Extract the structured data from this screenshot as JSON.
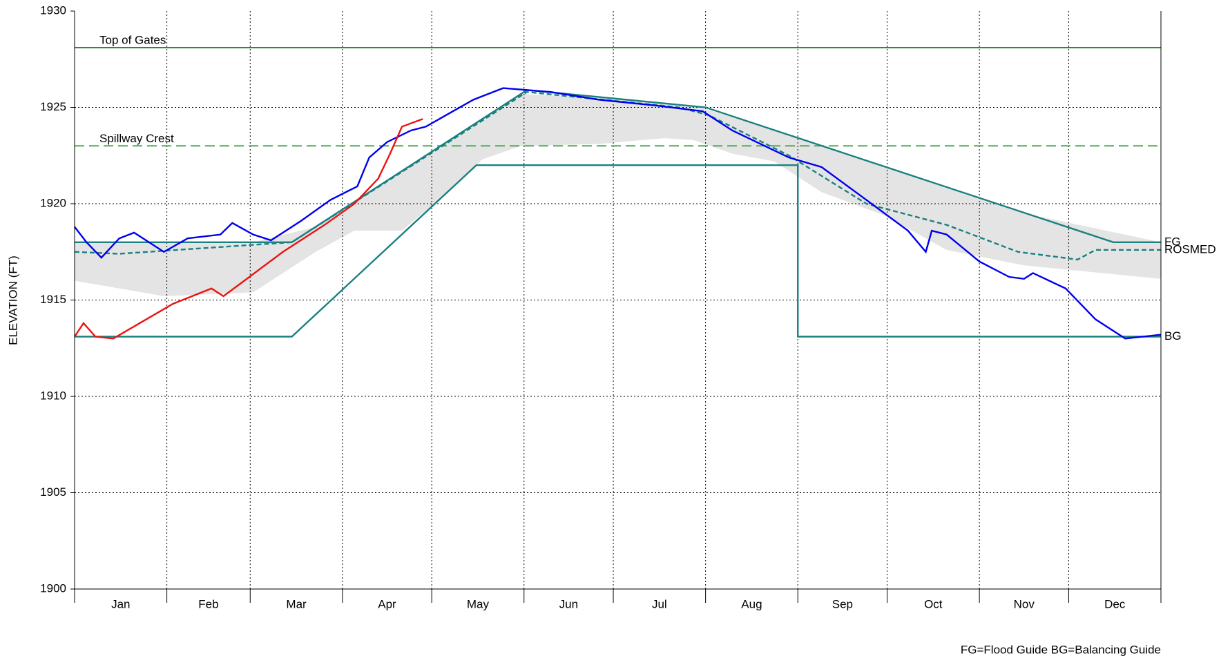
{
  "chart_data": {
    "type": "line",
    "y_label": "ELEVATION (FT)",
    "note": "FG=Flood Guide  BG=Balancing Guide",
    "xlim": [
      0,
      365
    ],
    "xticks": [
      {
        "value": 0,
        "label": "Jan"
      },
      {
        "value": 31,
        "label": "Feb"
      },
      {
        "value": 59,
        "label": "Mar"
      },
      {
        "value": 90,
        "label": "Apr"
      },
      {
        "value": 120,
        "label": "May"
      },
      {
        "value": 151,
        "label": "Jun"
      },
      {
        "value": 181,
        "label": "Jul"
      },
      {
        "value": 212,
        "label": "Aug"
      },
      {
        "value": 243,
        "label": "Sep"
      },
      {
        "value": 273,
        "label": "Oct"
      },
      {
        "value": 304,
        "label": "Nov"
      },
      {
        "value": 334,
        "label": "Dec"
      }
    ],
    "ylim": [
      1900,
      1930
    ],
    "yticks": [
      1900,
      1905,
      1910,
      1915,
      1920,
      1925,
      1930
    ],
    "grid": true,
    "reference_lines": [
      {
        "name": "Top of Gates",
        "value": 1928.1,
        "color": "#2e8b2e",
        "dash": false
      },
      {
        "name": "Spillway Crest",
        "value": 1923.0,
        "color": "#4caf50",
        "dash": true
      }
    ],
    "band": {
      "color": "#e4e4e4",
      "x": [
        0,
        30,
        60,
        81,
        94,
        110,
        123,
        137,
        150,
        176,
        198,
        208,
        221,
        235,
        251,
        272,
        293,
        319,
        365
      ],
      "lower": [
        1916.0,
        1915.2,
        1915.4,
        1917.5,
        1918.6,
        1918.6,
        1920.3,
        1922.3,
        1923.0,
        1923.1,
        1923.4,
        1923.3,
        1922.6,
        1922.2,
        1920.6,
        1919.4,
        1917.6,
        1916.8,
        1916.1
      ],
      "upper": [
        1918.0,
        1918.0,
        1918.0,
        1918.8,
        1920.1,
        1921.7,
        1923.0,
        1924.4,
        1925.7,
        1925.5,
        1925.2,
        1925.1,
        1924.5,
        1923.8,
        1923.0,
        1921.9,
        1920.8,
        1919.5,
        1918.0
      ]
    },
    "series": [
      {
        "name": "FG",
        "color": "#1a8080",
        "dash": false,
        "x": [
          0,
          73,
          152,
          212,
          349,
          365
        ],
        "values": [
          1918.0,
          1918.0,
          1925.9,
          1925.0,
          1918.0,
          1918.0
        ]
      },
      {
        "name": "ROSMED",
        "color": "#1a8080",
        "dash": true,
        "x": [
          0,
          15,
          73,
          152,
          203,
          213,
          240,
          266,
          293,
          317,
          337,
          343,
          365
        ],
        "values": [
          1917.5,
          1917.4,
          1918.0,
          1925.8,
          1925.0,
          1924.6,
          1922.5,
          1920.0,
          1918.9,
          1917.5,
          1917.1,
          1917.6,
          1917.6
        ]
      },
      {
        "name": "BG",
        "color": "#1a8080",
        "dash": false,
        "x": [
          0,
          73,
          135,
          243,
          243,
          365
        ],
        "values": [
          1913.1,
          1913.1,
          1922.0,
          1922.0,
          1913.1,
          1913.1
        ]
      },
      {
        "color": "#0000ee",
        "dash": false,
        "x": [
          0,
          4,
          9,
          15,
          20,
          30,
          38,
          49,
          53,
          60,
          66,
          76,
          86,
          95,
          99,
          105,
          113,
          118,
          134,
          144,
          160,
          176,
          195,
          211,
          221,
          240,
          251,
          266,
          280,
          286,
          288,
          293,
          304,
          314,
          319,
          322,
          333,
          343,
          353,
          365
        ],
        "values": [
          1918.8,
          1918.0,
          1917.2,
          1918.2,
          1918.5,
          1917.5,
          1918.2,
          1918.4,
          1919.0,
          1918.4,
          1918.1,
          1919.1,
          1920.2,
          1920.9,
          1922.4,
          1923.2,
          1923.8,
          1924.0,
          1925.4,
          1926.0,
          1925.8,
          1925.4,
          1925.1,
          1924.8,
          1923.8,
          1922.4,
          1921.9,
          1920.2,
          1918.6,
          1917.5,
          1918.6,
          1918.4,
          1917.0,
          1916.2,
          1916.1,
          1916.4,
          1915.6,
          1914.0,
          1913.0,
          1913.2
        ]
      },
      {
        "color": "#ee1111",
        "dash": false,
        "x": [
          0,
          3,
          7,
          13,
          23,
          33,
          46,
          50,
          57,
          70,
          84,
          94,
          102,
          106,
          110,
          117
        ],
        "values": [
          1913.1,
          1913.8,
          1913.1,
          1913.0,
          1913.9,
          1914.8,
          1915.6,
          1915.2,
          1916.0,
          1917.5,
          1918.9,
          1920.0,
          1921.3,
          1922.6,
          1924.0,
          1924.4
        ]
      }
    ]
  }
}
